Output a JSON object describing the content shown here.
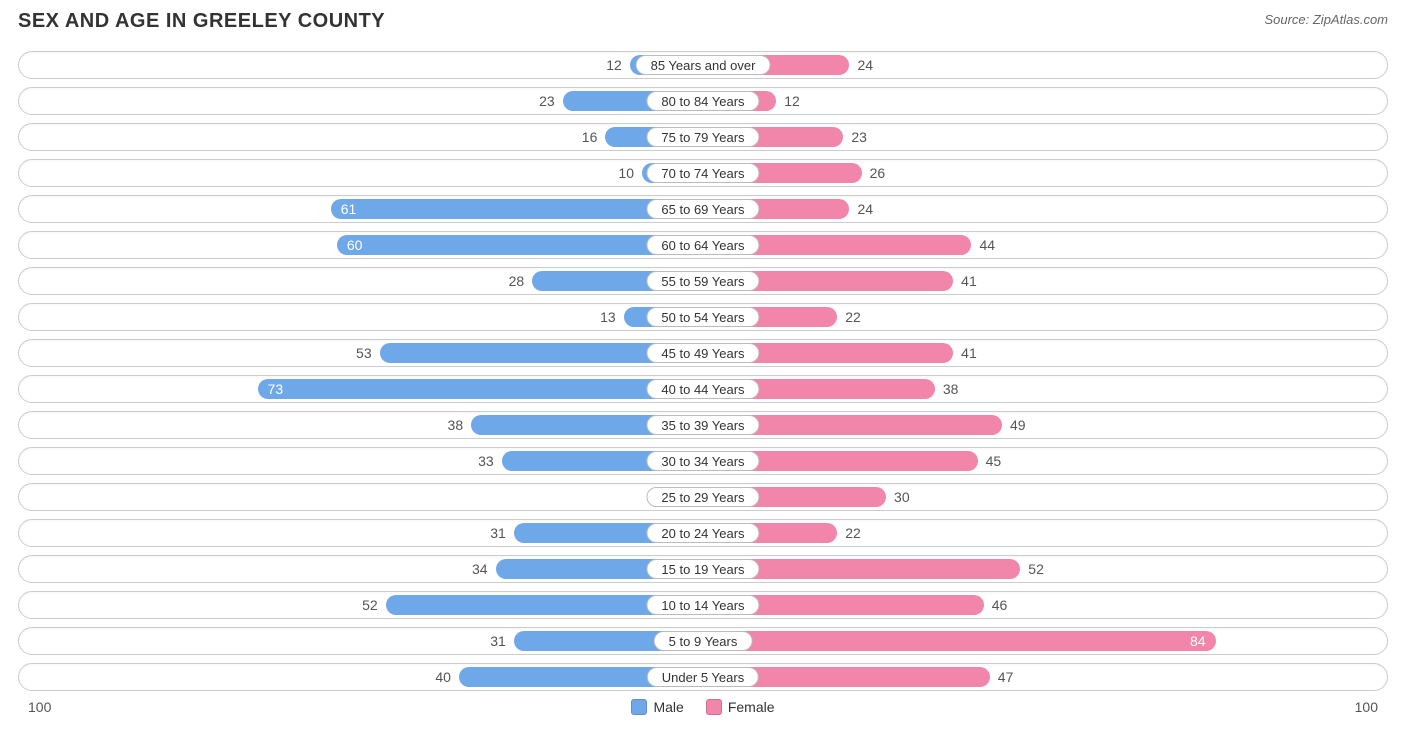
{
  "title": "SEX AND AGE IN GREELEY COUNTY",
  "source": "Source: ZipAtlas.com",
  "chart": {
    "type": "population-pyramid",
    "axis_max": 100,
    "axis_left_label": "100",
    "axis_right_label": "100",
    "male_color": "#6fa8e8",
    "female_color": "#f185aa",
    "row_border_color": "#cccccc",
    "background_color": "#ffffff",
    "label_fontsize": 14,
    "title_fontsize": 20,
    "source_fontsize": 13,
    "rows": [
      {
        "label": "85 Years and over",
        "male": 12,
        "female": 24
      },
      {
        "label": "80 to 84 Years",
        "male": 23,
        "female": 12
      },
      {
        "label": "75 to 79 Years",
        "male": 16,
        "female": 23
      },
      {
        "label": "70 to 74 Years",
        "male": 10,
        "female": 26
      },
      {
        "label": "65 to 69 Years",
        "male": 61,
        "female": 24
      },
      {
        "label": "60 to 64 Years",
        "male": 60,
        "female": 44
      },
      {
        "label": "55 to 59 Years",
        "male": 28,
        "female": 41
      },
      {
        "label": "50 to 54 Years",
        "male": 13,
        "female": 22
      },
      {
        "label": "45 to 49 Years",
        "male": 53,
        "female": 41
      },
      {
        "label": "40 to 44 Years",
        "male": 73,
        "female": 38
      },
      {
        "label": "35 to 39 Years",
        "male": 38,
        "female": 49
      },
      {
        "label": "30 to 34 Years",
        "male": 33,
        "female": 45
      },
      {
        "label": "25 to 29 Years",
        "male": 1,
        "female": 30
      },
      {
        "label": "20 to 24 Years",
        "male": 31,
        "female": 22
      },
      {
        "label": "15 to 19 Years",
        "male": 34,
        "female": 52
      },
      {
        "label": "10 to 14 Years",
        "male": 52,
        "female": 46
      },
      {
        "label": "5 to 9 Years",
        "male": 31,
        "female": 84
      },
      {
        "label": "Under 5 Years",
        "male": 40,
        "female": 47
      }
    ],
    "legend": {
      "male_label": "Male",
      "female_label": "Female"
    }
  }
}
